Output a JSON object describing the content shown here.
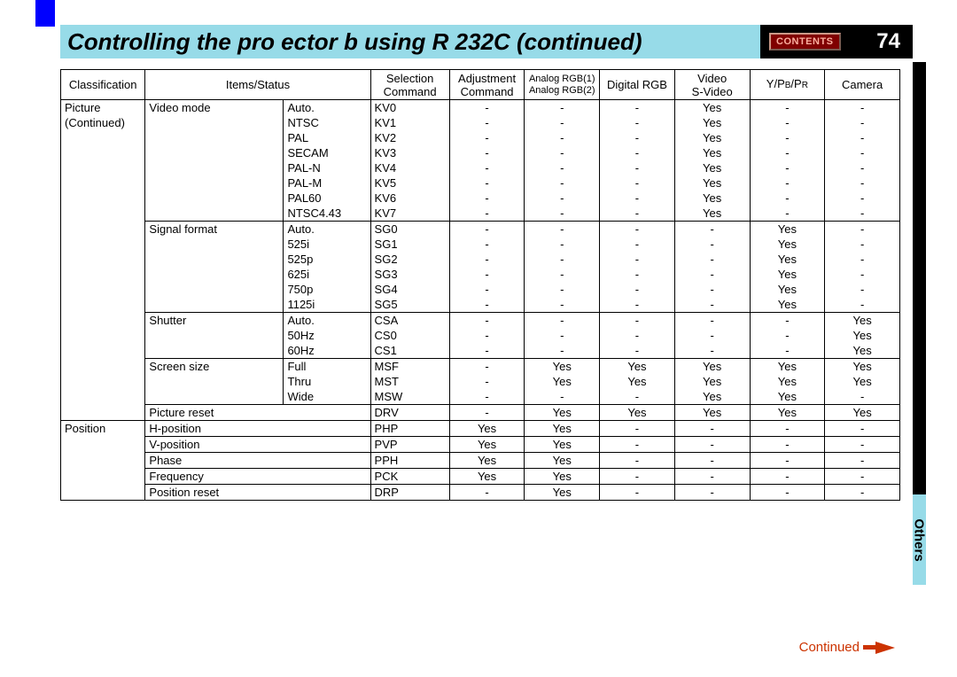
{
  "page": {
    "title": "Controlling the pro ector b   using R    232C (continued)",
    "contents_label": "CONTENTS",
    "page_number": "74",
    "side_tab": "Others",
    "continued": "Continued"
  },
  "colors": {
    "title_bg": "#97dbe8",
    "header_bg": "#000000",
    "contents_bg": "#800000",
    "contents_fg": "#fbb0a0",
    "accent_blue": "#0000ff",
    "continued": "#cc3300"
  },
  "table": {
    "headers": {
      "classification": "Classification",
      "items": "Items/Status",
      "selection": "Selection\nCommand",
      "adjustment": "Adjustment\nCommand",
      "argb1": "Analog RGB(1)",
      "argb2": "Analog RGB(2)",
      "drgb": "Digital RGB",
      "video": "Video",
      "svideo": "S-Video",
      "ypbpr": "Y/PB/PR",
      "camera": "Camera"
    },
    "groups": [
      {
        "classification": "Picture\n(Continued)",
        "items": [
          {
            "name": "Video mode",
            "rows": [
              {
                "sub": "Auto.",
                "sel": "KV0",
                "adj": "-",
                "argb": "-",
                "drgb": "-",
                "vid": "Yes",
                "yp": "-",
                "cam": "-"
              },
              {
                "sub": "NTSC",
                "sel": "KV1",
                "adj": "-",
                "argb": "-",
                "drgb": "-",
                "vid": "Yes",
                "yp": "-",
                "cam": "-"
              },
              {
                "sub": "PAL",
                "sel": "KV2",
                "adj": "-",
                "argb": "-",
                "drgb": "-",
                "vid": "Yes",
                "yp": "-",
                "cam": "-"
              },
              {
                "sub": "SECAM",
                "sel": "KV3",
                "adj": "-",
                "argb": "-",
                "drgb": "-",
                "vid": "Yes",
                "yp": "-",
                "cam": "-"
              },
              {
                "sub": "PAL-N",
                "sel": "KV4",
                "adj": "-",
                "argb": "-",
                "drgb": "-",
                "vid": "Yes",
                "yp": "-",
                "cam": "-"
              },
              {
                "sub": "PAL-M",
                "sel": "KV5",
                "adj": "-",
                "argb": "-",
                "drgb": "-",
                "vid": "Yes",
                "yp": "-",
                "cam": "-"
              },
              {
                "sub": "PAL60",
                "sel": "KV6",
                "adj": "-",
                "argb": "-",
                "drgb": "-",
                "vid": "Yes",
                "yp": "-",
                "cam": "-"
              },
              {
                "sub": "NTSC4.43",
                "sel": "KV7",
                "adj": "-",
                "argb": "-",
                "drgb": "-",
                "vid": "Yes",
                "yp": "-",
                "cam": "-"
              }
            ]
          },
          {
            "name": "Signal format",
            "rows": [
              {
                "sub": "Auto.",
                "sel": "SG0",
                "adj": "-",
                "argb": "-",
                "drgb": "-",
                "vid": "-",
                "yp": "Yes",
                "cam": "-"
              },
              {
                "sub": "525i",
                "sel": "SG1",
                "adj": "-",
                "argb": "-",
                "drgb": "-",
                "vid": "-",
                "yp": "Yes",
                "cam": "-"
              },
              {
                "sub": "525p",
                "sel": "SG2",
                "adj": "-",
                "argb": "-",
                "drgb": "-",
                "vid": "-",
                "yp": "Yes",
                "cam": "-"
              },
              {
                "sub": "625i",
                "sel": "SG3",
                "adj": "-",
                "argb": "-",
                "drgb": "-",
                "vid": "-",
                "yp": "Yes",
                "cam": "-"
              },
              {
                "sub": "750p",
                "sel": "SG4",
                "adj": "-",
                "argb": "-",
                "drgb": "-",
                "vid": "-",
                "yp": "Yes",
                "cam": "-"
              },
              {
                "sub": "1125i",
                "sel": "SG5",
                "adj": "-",
                "argb": "-",
                "drgb": "-",
                "vid": "-",
                "yp": "Yes",
                "cam": "-"
              }
            ]
          },
          {
            "name": "Shutter",
            "rows": [
              {
                "sub": "Auto.",
                "sel": "CSA",
                "adj": "-",
                "argb": "-",
                "drgb": "-",
                "vid": "-",
                "yp": "-",
                "cam": "Yes"
              },
              {
                "sub": "50Hz",
                "sel": "CS0",
                "adj": "-",
                "argb": "-",
                "drgb": "-",
                "vid": "-",
                "yp": "-",
                "cam": "Yes"
              },
              {
                "sub": "60Hz",
                "sel": "CS1",
                "adj": "-",
                "argb": "-",
                "drgb": "-",
                "vid": "-",
                "yp": "-",
                "cam": "Yes"
              }
            ]
          },
          {
            "name": "Screen size",
            "rows": [
              {
                "sub": "Full",
                "sel": "MSF",
                "adj": "-",
                "argb": "Yes",
                "drgb": "Yes",
                "vid": "Yes",
                "yp": "Yes",
                "cam": "Yes"
              },
              {
                "sub": "Thru",
                "sel": "MST",
                "adj": "-",
                "argb": "Yes",
                "drgb": "Yes",
                "vid": "Yes",
                "yp": "Yes",
                "cam": "Yes"
              },
              {
                "sub": "Wide",
                "sel": "MSW",
                "adj": "-",
                "argb": "-",
                "drgb": "-",
                "vid": "Yes",
                "yp": "Yes",
                "cam": "-"
              }
            ]
          },
          {
            "name": "Picture reset",
            "rows": [
              {
                "sub": "",
                "sel": "DRV",
                "adj": "-",
                "argb": "Yes",
                "drgb": "Yes",
                "vid": "Yes",
                "yp": "Yes",
                "cam": "Yes"
              }
            ]
          }
        ]
      },
      {
        "classification": "Position",
        "items": [
          {
            "name": "H-position",
            "rows": [
              {
                "sub": "",
                "sel": "PHP",
                "adj": "Yes",
                "argb": "Yes",
                "drgb": "-",
                "vid": "-",
                "yp": "-",
                "cam": "-"
              }
            ]
          },
          {
            "name": "V-position",
            "rows": [
              {
                "sub": "",
                "sel": "PVP",
                "adj": "Yes",
                "argb": "Yes",
                "drgb": "-",
                "vid": "-",
                "yp": "-",
                "cam": "-"
              }
            ]
          },
          {
            "name": "Phase",
            "rows": [
              {
                "sub": "",
                "sel": "PPH",
                "adj": "Yes",
                "argb": "Yes",
                "drgb": "-",
                "vid": "-",
                "yp": "-",
                "cam": "-"
              }
            ]
          },
          {
            "name": "Frequency",
            "rows": [
              {
                "sub": "",
                "sel": "PCK",
                "adj": "Yes",
                "argb": "Yes",
                "drgb": "-",
                "vid": "-",
                "yp": "-",
                "cam": "-"
              }
            ]
          },
          {
            "name": "Position reset",
            "rows": [
              {
                "sub": "",
                "sel": "DRP",
                "adj": "-",
                "argb": "Yes",
                "drgb": "-",
                "vid": "-",
                "yp": "-",
                "cam": "-"
              }
            ]
          }
        ]
      }
    ]
  }
}
